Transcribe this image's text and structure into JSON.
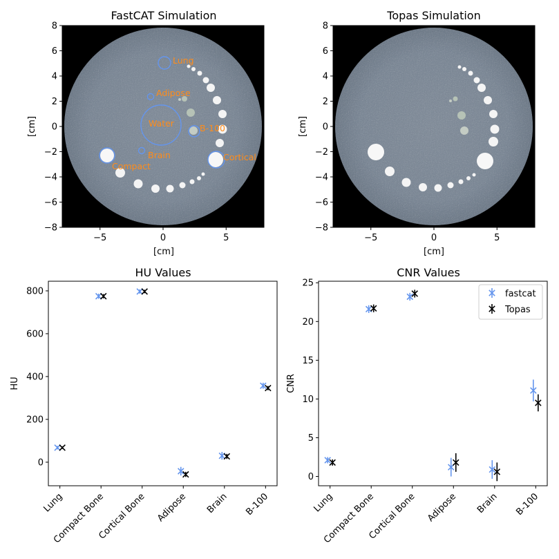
{
  "colors": {
    "fastcat": "#6495ed",
    "topas": "#000000",
    "annotation": "#ff8c1a",
    "phantom": "#7b8794",
    "background": "#000000"
  },
  "chart_data": [
    {
      "type": "image",
      "title": "FastCAT Simulation",
      "xlabel": "[cm]",
      "ylabel": "[cm]",
      "xlim": [
        -8,
        8
      ],
      "ylim": [
        -8,
        8
      ],
      "xticks": [
        "−5",
        "0",
        "5"
      ],
      "yticks": [
        "8",
        "6",
        "4",
        "2",
        "0",
        "−2",
        "−4",
        "−6",
        "−8"
      ],
      "annotations": [
        "Lung",
        "Adipose",
        "Water",
        "B-100",
        "Brain",
        "Compact",
        "Cortical"
      ]
    },
    {
      "type": "image",
      "title": "Topas Simulation",
      "xlabel": "[cm]",
      "ylabel": "[cm]",
      "xlim": [
        -8,
        8
      ],
      "ylim": [
        -8,
        8
      ],
      "xticks": [
        "−5",
        "0",
        "5"
      ],
      "yticks": [
        "8",
        "6",
        "4",
        "2",
        "0",
        "−2",
        "−4",
        "−6",
        "−8"
      ]
    },
    {
      "type": "scatter",
      "title": "HU Values",
      "xlabel": "",
      "ylabel": "HU",
      "categories": [
        "Lung",
        "Compact Bone",
        "Cortical Bone",
        "Adipose",
        "Brain",
        "B-100"
      ],
      "ylim": [
        -110,
        845
      ],
      "yticks": [
        "0",
        "200",
        "400",
        "600",
        "800"
      ],
      "series": [
        {
          "name": "fastcat",
          "values": [
            68,
            775,
            797,
            -42,
            30,
            357
          ],
          "errors": [
            8,
            12,
            10,
            20,
            18,
            14
          ]
        },
        {
          "name": "Topas",
          "values": [
            68,
            775,
            797,
            -57,
            27,
            346
          ],
          "errors": [
            6,
            10,
            8,
            12,
            12,
            10
          ]
        }
      ]
    },
    {
      "type": "scatter",
      "title": "CNR Values",
      "xlabel": "",
      "ylabel": "CNR",
      "categories": [
        "Lung",
        "Compact Bone",
        "Cortical Bone",
        "Adipose",
        "Brain",
        "B-100"
      ],
      "ylim": [
        -1.2,
        25.2
      ],
      "yticks": [
        "0",
        "5",
        "10",
        "15",
        "20",
        "25"
      ],
      "legend_position": "top-right",
      "series": [
        {
          "name": "fastcat",
          "values": [
            2.1,
            21.6,
            23.2,
            1.2,
            0.9,
            11.1
          ],
          "errors": [
            0.4,
            0.5,
            0.5,
            1.2,
            1.2,
            1.4
          ]
        },
        {
          "name": "Topas",
          "values": [
            1.8,
            21.7,
            23.6,
            1.8,
            0.6,
            9.5
          ],
          "errors": [
            0.4,
            0.5,
            0.5,
            1.2,
            1.2,
            1.1
          ]
        }
      ]
    }
  ]
}
